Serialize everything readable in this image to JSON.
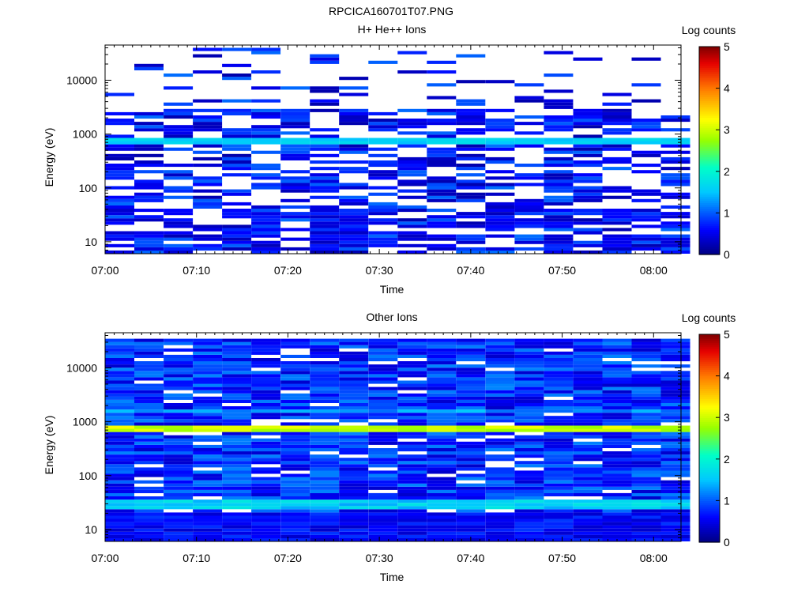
{
  "page_title": "RPCICA160701T07.PNG",
  "colorbar_label": "Log counts",
  "colorbar_ticks": [
    "0",
    "1",
    "2",
    "3",
    "4",
    "5"
  ],
  "chart_data": [
    {
      "type": "heatmap",
      "title": "H+ He++ Ions",
      "xlabel": "Time",
      "ylabel": "Energy (eV)",
      "x_tick_labels": [
        "07:00",
        "07:10",
        "07:20",
        "07:30",
        "07:40",
        "07:50",
        "08:00"
      ],
      "y_tick_labels": [
        "10",
        "100",
        "1000",
        "10000"
      ],
      "y_scale": "log",
      "ylim": [
        6,
        45000
      ],
      "xlim_minutes": [
        0,
        63
      ],
      "time_bins_minutes": [
        1.6,
        4.8,
        8,
        11.2,
        14.4,
        17.6,
        20.8,
        24,
        27.2,
        30.4,
        33.6,
        36.8,
        40,
        43.2,
        46.4,
        49.6,
        52.8,
        56,
        59.2,
        62.4
      ],
      "colorbar_label": "Log counts",
      "clim": [
        0,
        5
      ],
      "colormap": "rainbow",
      "notes_visible": "sparse dark-blue counts (~0.3-1.2), persistent cyan band near 700-800 eV (~1.5-1.8)",
      "summary_bands_eV": [
        {
          "energy_min": 650,
          "energy_max": 830,
          "log_counts": 1.6
        },
        {
          "energy_min": 17,
          "energy_max": 40,
          "log_counts": 0.5
        },
        {
          "energy_min": 6,
          "energy_max": 14,
          "log_counts": 0.4
        }
      ]
    },
    {
      "type": "heatmap",
      "title": "Other Ions",
      "xlabel": "Time",
      "ylabel": "Energy (eV)",
      "x_tick_labels": [
        "07:00",
        "07:10",
        "07:20",
        "07:30",
        "07:40",
        "07:50",
        "08:00"
      ],
      "y_tick_labels": [
        "10",
        "100",
        "1000",
        "10000"
      ],
      "y_scale": "log",
      "ylim": [
        6,
        45000
      ],
      "xlim_minutes": [
        0,
        63
      ],
      "time_bins_minutes": [
        1.6,
        4.8,
        8,
        11.2,
        14.4,
        17.6,
        20.8,
        24,
        27.2,
        30.4,
        33.6,
        36.8,
        40,
        43.2,
        46.4,
        49.6,
        52.8,
        56,
        59.2,
        62.4
      ],
      "colorbar_label": "Log counts",
      "clim": [
        0,
        5
      ],
      "colormap": "rainbow",
      "notes_visible": "dense blue background (~0.5-1), bright band near 700-800 eV (~2.5-3.3), cyan band near 25-35 eV (~1.3-2)",
      "summary_bands_eV": [
        {
          "energy_min": 650,
          "energy_max": 830,
          "log_counts": 3.0
        },
        {
          "energy_min": 1400,
          "energy_max": 1700,
          "log_counts": 1.3
        },
        {
          "energy_min": 24,
          "energy_max": 36,
          "log_counts": 1.6
        },
        {
          "energy_min": 6,
          "energy_max": 20,
          "log_counts": 0.6
        }
      ]
    }
  ]
}
